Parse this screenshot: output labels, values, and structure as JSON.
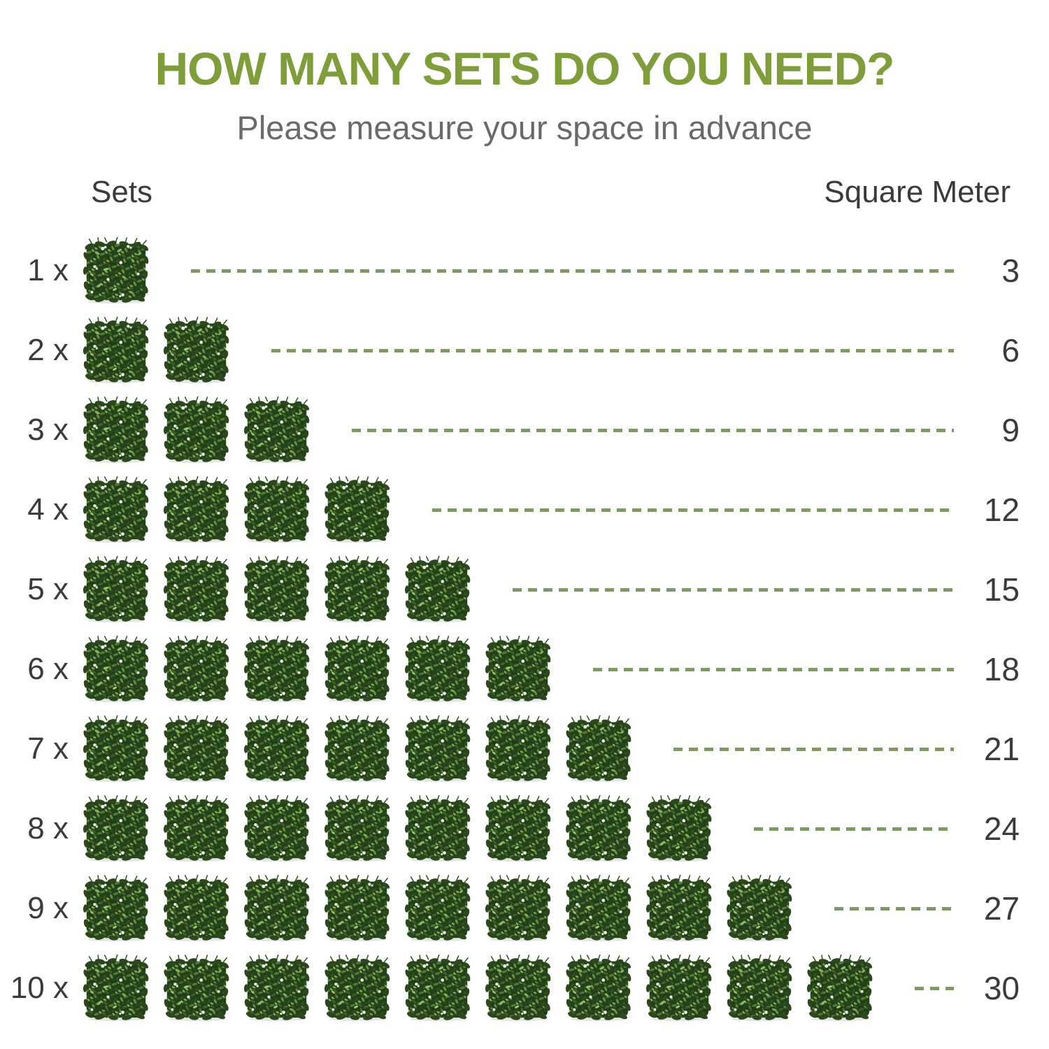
{
  "title": "HOW MANY SETS DO YOU NEED?",
  "subtitle": "Please measure your space in advance",
  "table": {
    "sets_header": "Sets",
    "square_meter_header": "Square Meter",
    "rows": [
      {
        "label": "1 x",
        "sets": 1,
        "square_meters": "3"
      },
      {
        "label": "2 x",
        "sets": 2,
        "square_meters": "6"
      },
      {
        "label": "3 x",
        "sets": 3,
        "square_meters": "9"
      },
      {
        "label": "4 x",
        "sets": 4,
        "square_meters": "12"
      },
      {
        "label": "5 x",
        "sets": 5,
        "square_meters": "15"
      },
      {
        "label": "6 x",
        "sets": 6,
        "square_meters": "18"
      },
      {
        "label": "7 x",
        "sets": 7,
        "square_meters": "21"
      },
      {
        "label": "8 x",
        "sets": 8,
        "square_meters": "24"
      },
      {
        "label": "9 x",
        "sets": 9,
        "square_meters": "27"
      },
      {
        "label": "10 x",
        "sets": 10,
        "square_meters": "30"
      }
    ]
  },
  "icons": {
    "hedge": "hedge-panel-icon"
  },
  "colors": {
    "title_green": "#7e9e3a",
    "dash_green": "#7b9c5a",
    "subtitle_gray": "#6a6a6a",
    "text_dark": "#3b3b3b",
    "hedge_dark_green": "#23401a",
    "hedge_light_green": "#8fba62",
    "hedge_flower_white": "#eef3e6"
  },
  "chart_data": {
    "type": "table",
    "title": "HOW MANY SETS DO YOU NEED?",
    "subtitle": "Please measure your space in advance",
    "columns": [
      "Sets",
      "Square Meter"
    ],
    "rows": [
      [
        1,
        3
      ],
      [
        2,
        6
      ],
      [
        3,
        9
      ],
      [
        4,
        12
      ],
      [
        5,
        15
      ],
      [
        6,
        18
      ],
      [
        7,
        21
      ],
      [
        8,
        24
      ],
      [
        9,
        27
      ],
      [
        10,
        30
      ]
    ],
    "notes": "Pictograph: each row shows N artificial hedge-panel set icons joined by a green dashed line to the coverage in square meters (3 square meters per set).",
    "legend_position": "none",
    "grid": false
  }
}
